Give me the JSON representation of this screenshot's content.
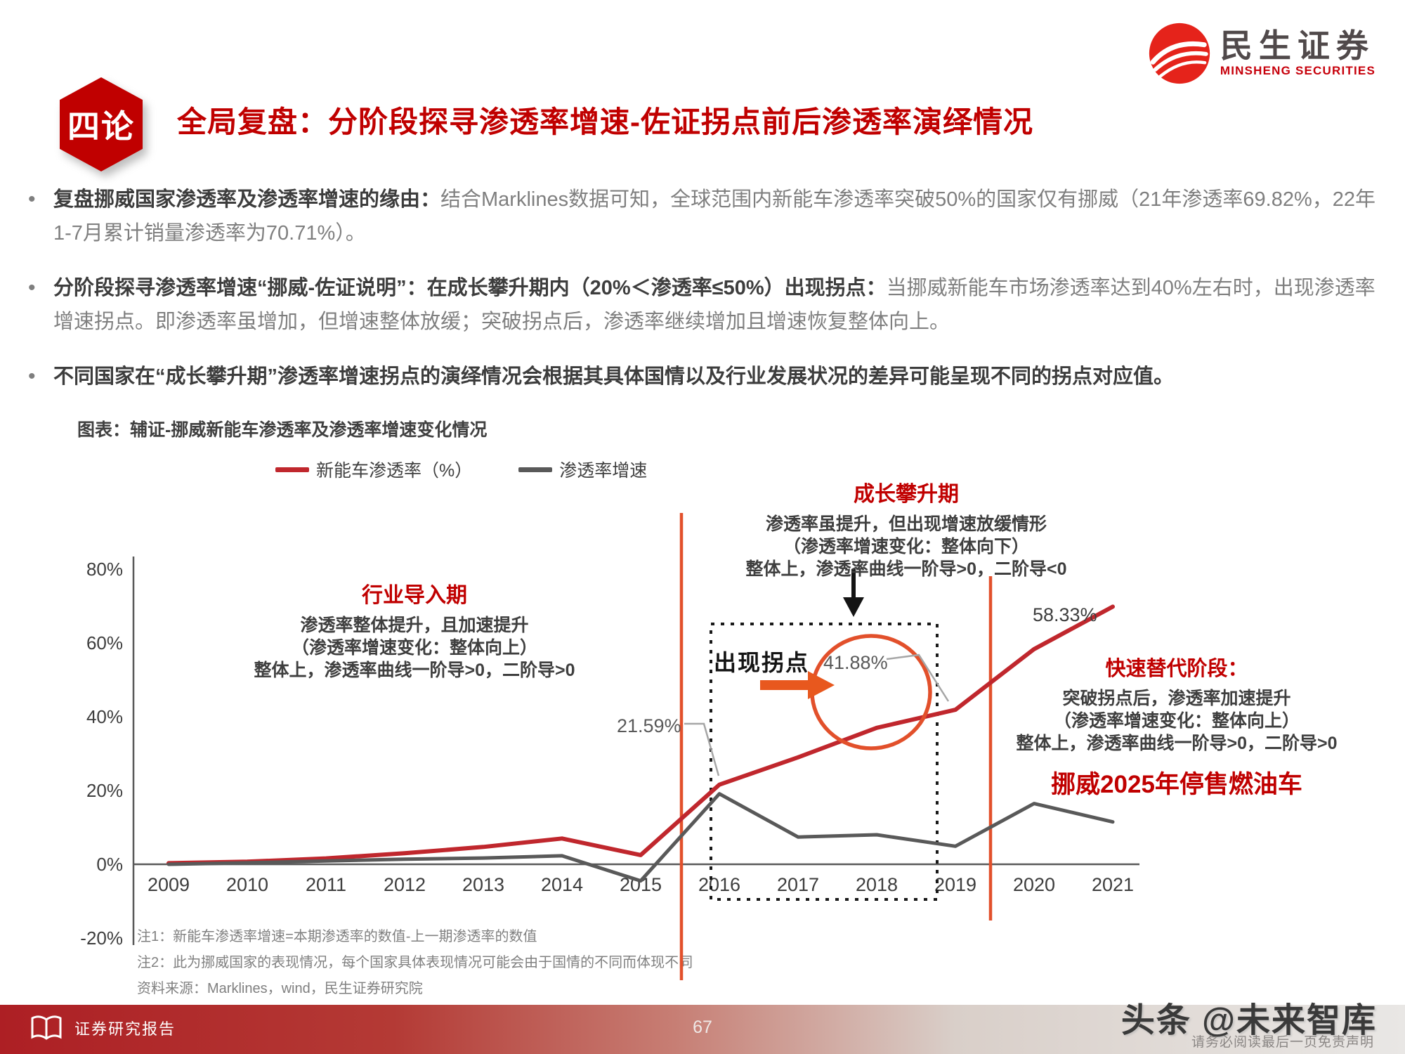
{
  "colors": {
    "accent_red": "#c00000",
    "line_red": "#c0272d",
    "line_gray": "#595959",
    "annotation_orange": "#e2502b"
  },
  "header": {
    "badge": "四论",
    "title": "全局复盘：分阶段探寻渗透率增速-佐证拐点前后渗透率演绎情况",
    "logo_cn": "民生证券",
    "logo_en": "MINSHENG SECURITIES"
  },
  "bullets": [
    {
      "lead": "复盘挪威国家渗透率及渗透率增速的缘由：",
      "body": "结合Marklines数据可知，全球范围内新能车渗透率突破50%的国家仅有挪威（21年渗透率69.82%，22年1-7月累计销量渗透率为70.71%）。"
    },
    {
      "lead": "分阶段探寻渗透率增速“挪威-佐证说明”：在成长攀升期内（20%＜渗透率≤50%）出现拐点：",
      "body": "当挪威新能车市场渗透率达到40%左右时，出现渗透率增速拐点。即渗透率虽增加，但增速整体放缓；突破拐点后，渗透率继续增加且增速恢复整体向上。"
    },
    {
      "lead": "不同国家在“成长攀升期”渗透率增速拐点的演绎情况会根据其具体国情以及行业发展状况的差异可能呈现不同的拐点对应值。",
      "body": ""
    }
  ],
  "figure": {
    "title": "图表：辅证-挪威新能车渗透率及渗透率增速变化情况"
  },
  "chart_data": {
    "type": "line",
    "title": "辅证-挪威新能车渗透率及渗透率增速变化情况",
    "categories": [
      "2009",
      "2010",
      "2011",
      "2012",
      "2013",
      "2014",
      "2015",
      "2016",
      "2017",
      "2018",
      "2019",
      "2020",
      "2021"
    ],
    "series": [
      {
        "name": "新能车渗透率（%）",
        "color": "#c0272d",
        "values": [
          0.3,
          0.7,
          1.6,
          3.0,
          4.7,
          7.0,
          2.5,
          21.59,
          29.0,
          37.0,
          41.88,
          58.33,
          69.82
        ]
      },
      {
        "name": "渗透率增速",
        "color": "#595959",
        "values": [
          0,
          0.4,
          0.9,
          1.4,
          1.7,
          2.3,
          -4.5,
          19.1,
          7.4,
          8.0,
          4.9,
          16.45,
          11.49
        ]
      }
    ],
    "y_ticks": [
      {
        "label": "80%",
        "value": 80
      },
      {
        "label": "60%",
        "value": 60
      },
      {
        "label": "40%",
        "value": 40
      },
      {
        "label": "20%",
        "value": 20
      },
      {
        "label": "0%",
        "value": 0
      },
      {
        "label": "-20%",
        "value": -20
      }
    ],
    "ylim": [
      -20,
      80
    ],
    "grid": false,
    "legend_position": "top",
    "point_labels": {
      "2016": "21.59%",
      "2019": "41.88%",
      "2020": "58.33%"
    }
  },
  "annotations": {
    "phase1": {
      "title": "行业导入期",
      "line1": "渗透率整体提升，且加速提升",
      "line2": "（渗透率增速变化：整体向上）",
      "line3": "整体上，渗透率曲线一阶导>0，二阶导>0"
    },
    "phase2": {
      "title": "成长攀升期",
      "line1": "渗透率虽提升，但出现增速放缓情形",
      "line2": "（渗透率增速变化：整体向下）",
      "line3": "整体上，渗透率曲线一阶导>0，二阶导<0"
    },
    "phase3": {
      "title": "快速替代阶段：",
      "line1": "突破拐点后，渗透率加速提升",
      "line2": "（渗透率增速变化：整体向上）",
      "line3": "整体上，渗透率曲线一阶导>0，二阶导>0"
    },
    "inflection": "出现拐点",
    "label_2016": "21.59%",
    "label_2019": "41.88%",
    "label_2020": "58.33%",
    "ban": "挪威2025年停售燃油车"
  },
  "notes": {
    "note1": "注1：新能车渗透率增速=本期渗透率的数值-上一期渗透率的数值",
    "note2": "注2：此为挪威国家的表现情况，每个国家具体表现情况可能会由于国情的不同而体现不同",
    "source": "资料来源：Marklines，wind，民生证券研究院"
  },
  "footer": {
    "left_label": "证券研究报告",
    "page": "67",
    "watermark": "头条 @未来智库",
    "disclaimer": "请务必阅读最后一页免责声明"
  }
}
